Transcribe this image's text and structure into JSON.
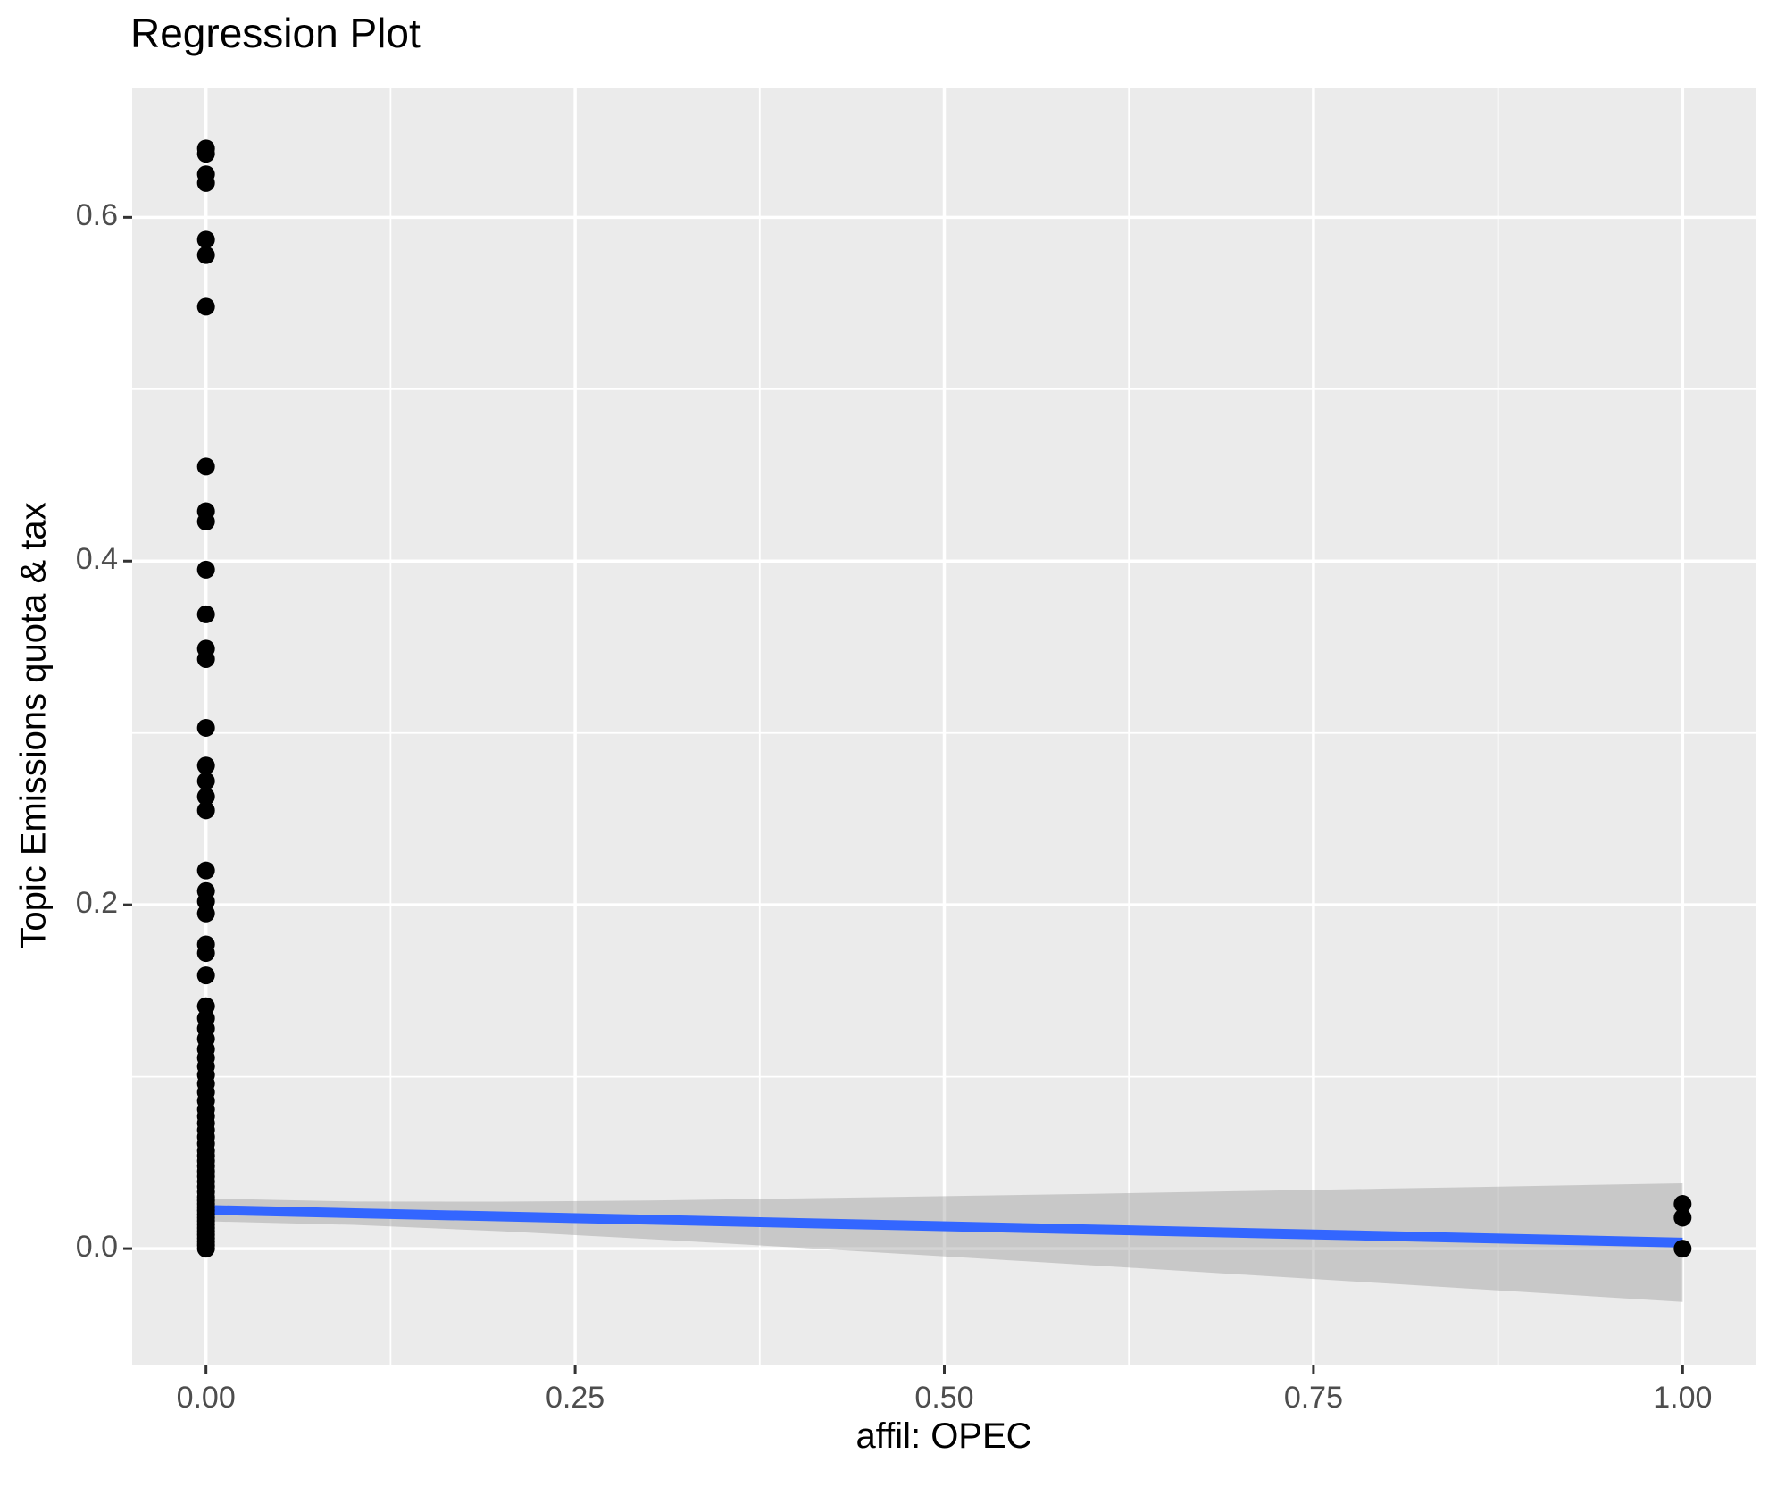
{
  "title": "Regression Plot",
  "chart_data": {
    "type": "scatter",
    "title": "Regression Plot",
    "xlabel": "affil: OPEC",
    "ylabel": "Topic Emissions quota & tax",
    "x_domain": [
      -0.05,
      1.05
    ],
    "y_domain": [
      -0.0675,
      0.675
    ],
    "grid": "on",
    "legend": "none",
    "x_ticks": {
      "values": [
        0,
        0.25,
        0.5,
        0.75,
        1.0
      ],
      "labels": [
        "0.00",
        "0.25",
        "0.50",
        "0.75",
        "1.00"
      ],
      "minor": [
        0.125,
        0.375,
        0.625,
        0.875
      ]
    },
    "y_ticks": {
      "values": [
        0,
        0.2,
        0.4,
        0.6
      ],
      "labels": [
        "0.0",
        "0.2",
        "0.4",
        "0.6"
      ],
      "minor": [
        0.1,
        0.3,
        0.5
      ]
    },
    "series": [
      {
        "name": "observations",
        "type": "scatter",
        "color": "#000000",
        "point_radius": 10,
        "groups": [
          {
            "x": 0,
            "ys": [
              0.64,
              0.637,
              0.625,
              0.62,
              0.587,
              0.578,
              0.548,
              0.455,
              0.429,
              0.423,
              0.395,
              0.369,
              0.349,
              0.343,
              0.303,
              0.281,
              0.272,
              0.263,
              0.255,
              0.22,
              0.208,
              0.202,
              0.195,
              0.177,
              0.172,
              0.159,
              0.141,
              0.134,
              0.128,
              0.122,
              0.116,
              0.111,
              0.106,
              0.101,
              0.096,
              0.091,
              0.086,
              0.081,
              0.077,
              0.073,
              0.069,
              0.065,
              0.061,
              0.057,
              0.054,
              0.051,
              0.048,
              0.045,
              0.042,
              0.039,
              0.036,
              0.033,
              0.03,
              0.028,
              0.026,
              0.024,
              0.022,
              0.02,
              0.018,
              0.016,
              0.014,
              0.012,
              0.01,
              0.008,
              0.006,
              0.004,
              0.002,
              0.0
            ]
          },
          {
            "x": 1,
            "ys": [
              0.026,
              0.018,
              0.0
            ]
          }
        ]
      },
      {
        "name": "regression-line",
        "type": "line",
        "color": "#3366FF",
        "stroke_width": 11,
        "x": [
          0,
          1
        ],
        "y": [
          0.0225,
          0.0035
        ]
      },
      {
        "name": "confidence-band",
        "type": "area",
        "fill": "#999999",
        "opacity": 0.42,
        "x": [
          0.0,
          0.1,
          0.2,
          0.3,
          0.4,
          0.5,
          0.6,
          0.7,
          0.8,
          0.9,
          1.0
        ],
        "upper": [
          0.0292,
          0.0274,
          0.0273,
          0.028,
          0.0292,
          0.0305,
          0.0319,
          0.0334,
          0.0349,
          0.0364,
          0.038
        ],
        "lower": [
          0.0159,
          0.0138,
          0.0101,
          0.0056,
          0.0006,
          -0.0045,
          -0.0097,
          -0.015,
          -0.0203,
          -0.0256,
          -0.031
        ]
      }
    ],
    "colors": {
      "panel_background": "#EBEBEB",
      "gridline": "#FFFFFF",
      "tick_label": "#4D4D4D",
      "tick_mark": "#333333",
      "point": "#000000",
      "smooth_line": "#3366FF",
      "ci_fill": "#999999"
    }
  }
}
